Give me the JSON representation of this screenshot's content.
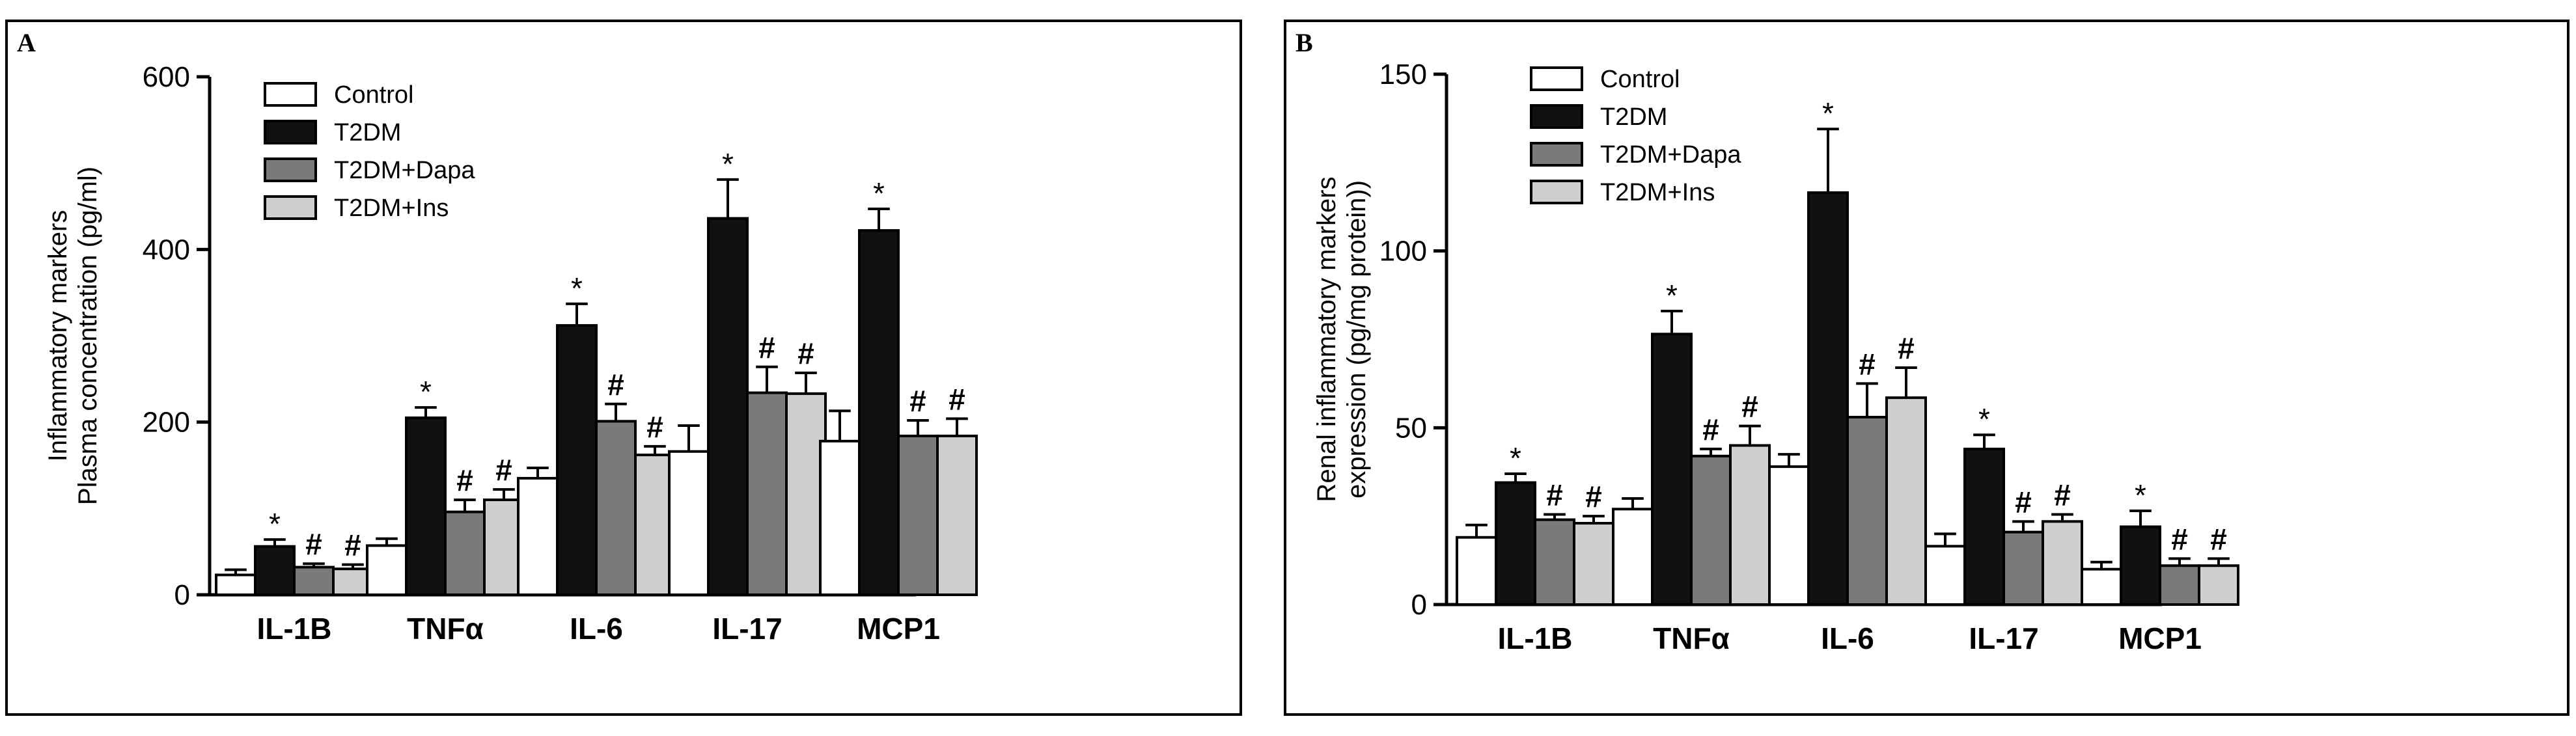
{
  "colors": {
    "Control": "#ffffff",
    "T2DM": "#111111",
    "T2DM+Dapa": "#7a7a7a",
    "T2DM+Ins": "#cfcfcf"
  },
  "chart_data": [
    {
      "panel": "A",
      "type": "bar",
      "ylabel_lines": [
        "Inflammatory markers",
        "Plasma concentration (pg/ml)"
      ],
      "ylim": [
        0,
        600
      ],
      "yticks": [
        0,
        200,
        400,
        600
      ],
      "categories": [
        "IL-1B",
        "TNFα",
        "IL-6",
        "IL-17",
        "MCP1"
      ],
      "series": [
        {
          "name": "Control",
          "values": [
            23,
            57,
            135,
            166,
            178
          ],
          "errors": [
            6,
            8,
            12,
            30,
            35
          ]
        },
        {
          "name": "T2DM",
          "values": [
            56,
            205,
            312,
            436,
            422
          ],
          "errors": [
            8,
            12,
            25,
            45,
            25
          ]
        },
        {
          "name": "T2DM+Dapa",
          "values": [
            32,
            96,
            201,
            234,
            184
          ],
          "errors": [
            4,
            14,
            20,
            30,
            18
          ]
        },
        {
          "name": "T2DM+Ins",
          "values": [
            30,
            110,
            162,
            233,
            184
          ],
          "errors": [
            5,
            12,
            10,
            24,
            20
          ]
        }
      ],
      "significance": [
        {
          "series": "T2DM",
          "marks": [
            "*",
            "*",
            "*",
            "*",
            "*"
          ]
        },
        {
          "series": "T2DM+Dapa",
          "marks": [
            "#",
            "#",
            "#",
            "#",
            "#"
          ]
        },
        {
          "series": "T2DM+Ins",
          "marks": [
            "#",
            "#",
            "#",
            "#",
            "#"
          ]
        }
      ]
    },
    {
      "panel": "B",
      "type": "bar",
      "ylabel_lines": [
        "Renal inflammatory markers",
        "expression (pg/mg protein))"
      ],
      "ylim": [
        0,
        150
      ],
      "yticks": [
        0,
        50,
        100,
        150
      ],
      "categories": [
        "IL-1B",
        "TNFα",
        "IL-6",
        "IL-17",
        "MCP1"
      ],
      "series": [
        {
          "name": "Control",
          "values": [
            19,
            27,
            39,
            16.5,
            10
          ],
          "errors": [
            3.5,
            3,
            3.5,
            3.5,
            2
          ]
        },
        {
          "name": "T2DM",
          "values": [
            34.5,
            76.5,
            116.5,
            44,
            22
          ],
          "errors": [
            2.5,
            6.5,
            18,
            4,
            4.5
          ]
        },
        {
          "name": "T2DM+Dapa",
          "values": [
            24,
            42,
            53,
            20.5,
            11
          ],
          "errors": [
            1.5,
            2,
            9.5,
            3,
            2
          ]
        },
        {
          "name": "T2DM+Ins",
          "values": [
            23,
            45,
            58.5,
            23.5,
            11
          ],
          "errors": [
            2,
            5.5,
            8.5,
            2,
            2
          ]
        }
      ],
      "significance": [
        {
          "series": "T2DM",
          "marks": [
            "*",
            "*",
            "*",
            "*",
            "*"
          ]
        },
        {
          "series": "T2DM+Dapa",
          "marks": [
            "#",
            "#",
            "#",
            "#",
            "#"
          ]
        },
        {
          "series": "T2DM+Ins",
          "marks": [
            "#",
            "#",
            "#",
            "#",
            "#"
          ]
        }
      ]
    }
  ],
  "panels": {
    "A": {
      "label": "A"
    },
    "B": {
      "label": "B"
    }
  }
}
